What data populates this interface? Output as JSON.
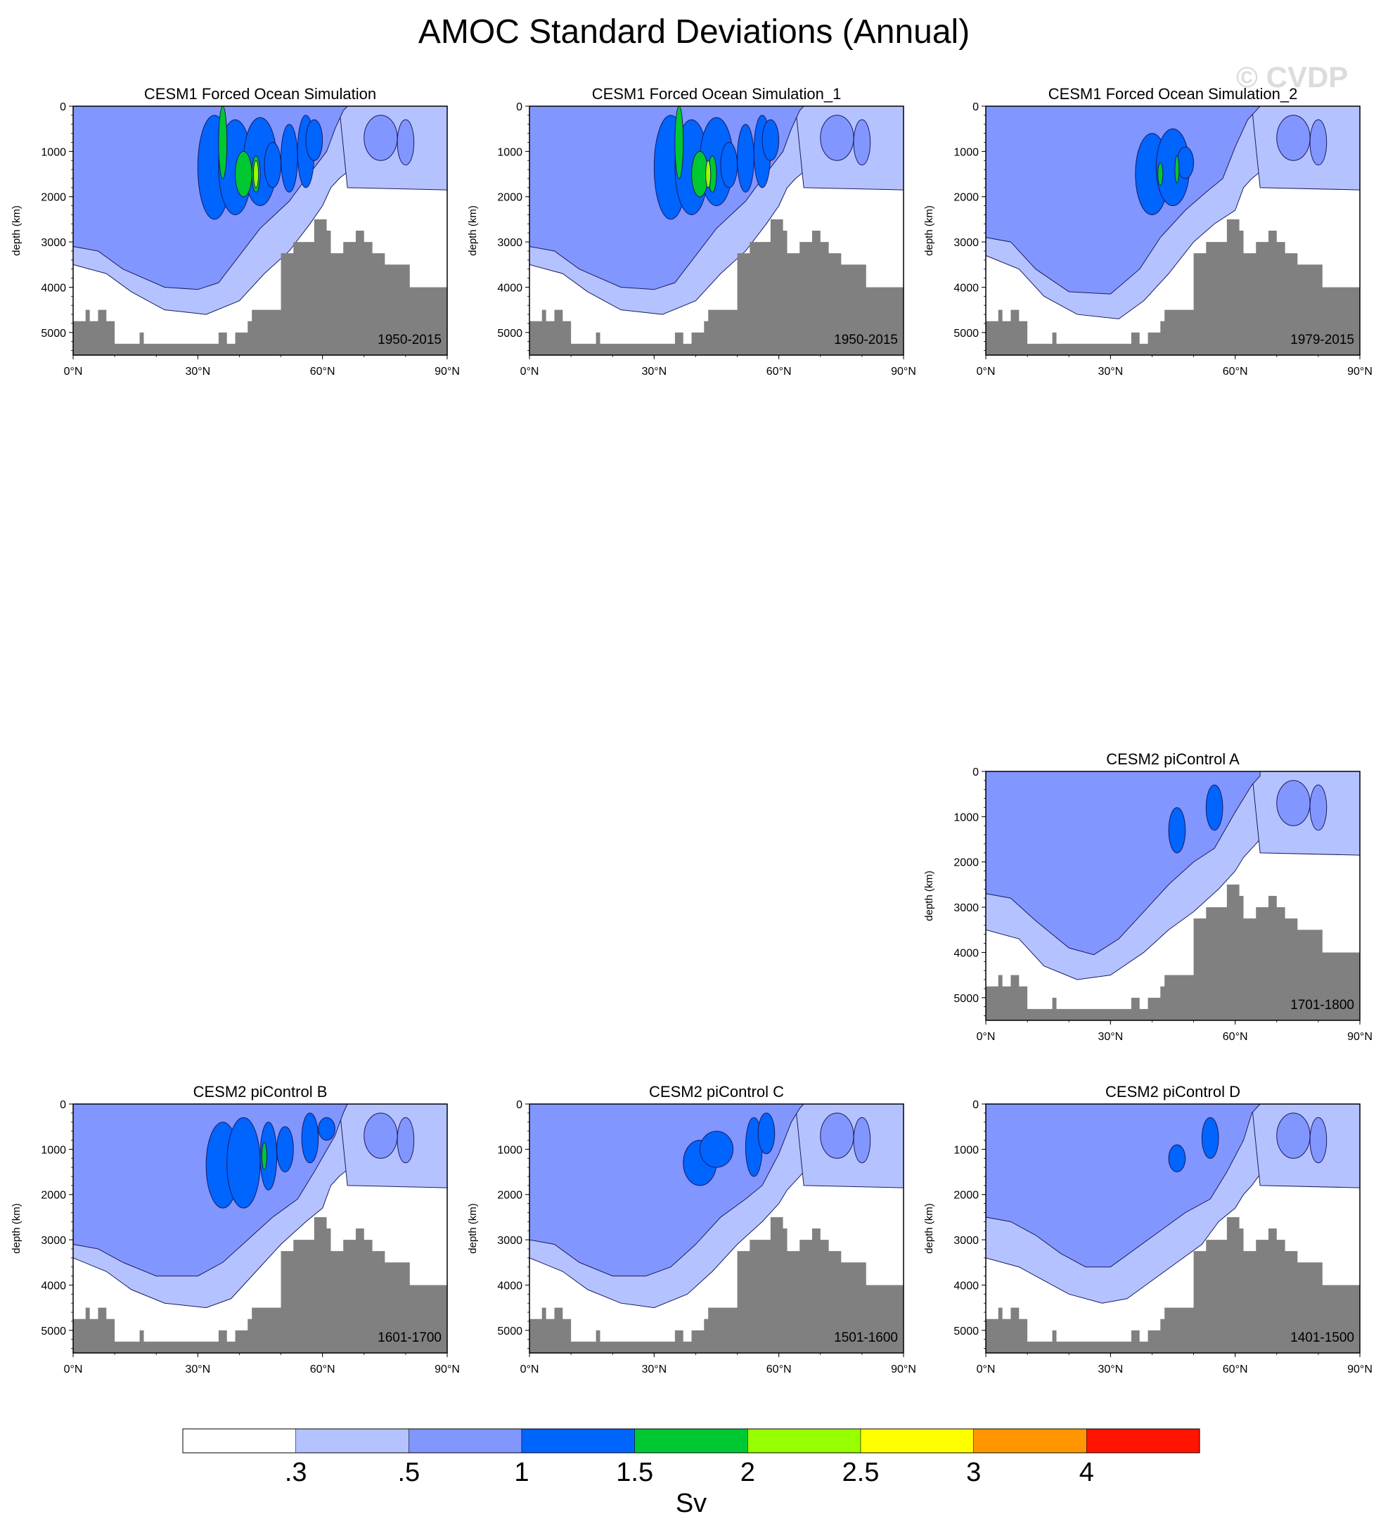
{
  "figure": {
    "title": "AMOC Standard Deviations (Annual)",
    "watermark": "© CVDP"
  },
  "colors": {
    "land": "#808080",
    "levels": [
      "#ffffff",
      "#b4c3ff",
      "#8296ff",
      "#0064ff",
      "#00c832",
      "#96ff00",
      "#ffff00",
      "#ff9600",
      "#ff1400"
    ]
  },
  "chart_data": [
    {
      "type": "heatmap",
      "title": "CESM1 Forced Ocean Simulation",
      "period": "1950-2015",
      "ylabel": "depth (km)",
      "ylim": [
        5500,
        0
      ],
      "xlim": [
        0,
        90
      ],
      "xticks": [
        "0°N",
        "30°N",
        "60°N",
        "90°N"
      ],
      "yticks": [
        "0",
        "1000",
        "2000",
        "3000",
        "4000",
        "5000"
      ],
      "max_sd_Sv": 2.5
    },
    {
      "type": "heatmap",
      "title": "CESM1 Forced Ocean Simulation_1",
      "period": "1950-2015",
      "ylabel": "depth (km)",
      "ylim": [
        5500,
        0
      ],
      "xlim": [
        0,
        90
      ],
      "xticks": [
        "0°N",
        "30°N",
        "60°N",
        "90°N"
      ],
      "yticks": [
        "0",
        "1000",
        "2000",
        "3000",
        "4000",
        "5000"
      ],
      "max_sd_Sv": 2.5
    },
    {
      "type": "heatmap",
      "title": "CESM1 Forced Ocean Simulation_2",
      "period": "1979-2015",
      "ylabel": "depth (km)",
      "ylim": [
        5500,
        0
      ],
      "xlim": [
        0,
        90
      ],
      "xticks": [
        "0°N",
        "30°N",
        "60°N",
        "90°N"
      ],
      "yticks": [
        "0",
        "1000",
        "2000",
        "3000",
        "4000",
        "5000"
      ],
      "max_sd_Sv": 2.0
    },
    {
      "type": "heatmap",
      "title": "CESM2 piControl A",
      "period": "1701-1800",
      "ylabel": "depth (km)",
      "ylim": [
        5500,
        0
      ],
      "xlim": [
        0,
        90
      ],
      "xticks": [
        "0°N",
        "30°N",
        "60°N",
        "90°N"
      ],
      "yticks": [
        "0",
        "1000",
        "2000",
        "3000",
        "4000",
        "5000"
      ],
      "max_sd_Sv": 1.5
    },
    {
      "type": "heatmap",
      "title": "CESM2 piControl B",
      "period": "1601-1700",
      "ylabel": "depth (km)",
      "ylim": [
        5500,
        0
      ],
      "xlim": [
        0,
        90
      ],
      "xticks": [
        "0°N",
        "30°N",
        "60°N",
        "90°N"
      ],
      "yticks": [
        "0",
        "1000",
        "2000",
        "3000",
        "4000",
        "5000"
      ],
      "max_sd_Sv": 2.0
    },
    {
      "type": "heatmap",
      "title": "CESM2 piControl C",
      "period": "1501-1600",
      "ylabel": "depth (km)",
      "ylim": [
        5500,
        0
      ],
      "xlim": [
        0,
        90
      ],
      "xticks": [
        "0°N",
        "30°N",
        "60°N",
        "90°N"
      ],
      "yticks": [
        "0",
        "1000",
        "2000",
        "3000",
        "4000",
        "5000"
      ],
      "max_sd_Sv": 1.5
    },
    {
      "type": "heatmap",
      "title": "CESM2 piControl D",
      "period": "1401-1500",
      "ylabel": "depth (km)",
      "ylim": [
        5500,
        0
      ],
      "xlim": [
        0,
        90
      ],
      "xticks": [
        "0°N",
        "30°N",
        "60°N",
        "90°N"
      ],
      "yticks": [
        "0",
        "1000",
        "2000",
        "3000",
        "4000",
        "5000"
      ],
      "max_sd_Sv": 1.5
    }
  ],
  "colorbar": {
    "labels": [
      ".3",
      ".5",
      "1",
      "1.5",
      "2",
      "2.5",
      "3",
      "4"
    ],
    "unit": "Sv"
  }
}
